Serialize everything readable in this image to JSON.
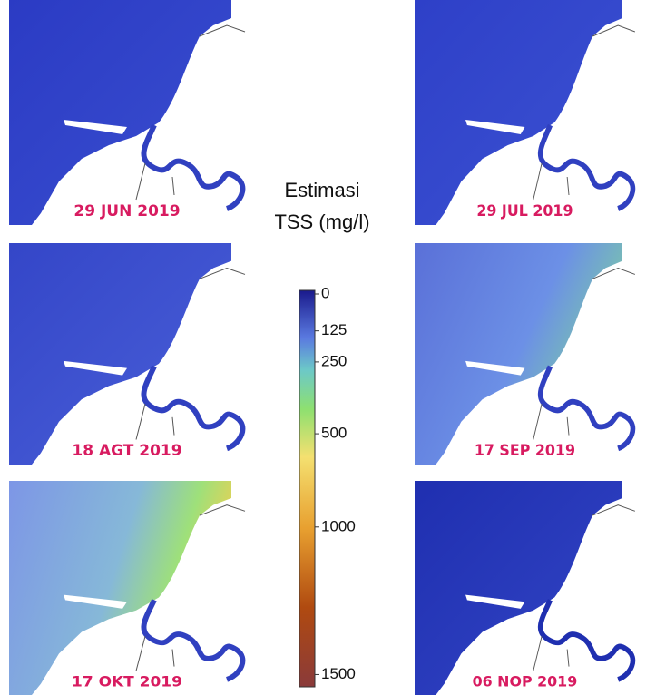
{
  "panels": [
    {
      "label": "29 JUN 2019"
    },
    {
      "label": "29 JUL 2019"
    },
    {
      "label": "18 AGT 2019"
    },
    {
      "label": "17 SEP 2019"
    },
    {
      "label": "17 OKT 2019"
    },
    {
      "label": "06 NOP 2019"
    }
  ],
  "legend": {
    "title": [
      "Estimasi",
      "TSS (mg/l)"
    ],
    "ticks": [
      0,
      125,
      250,
      500,
      1000,
      1500
    ]
  }
}
